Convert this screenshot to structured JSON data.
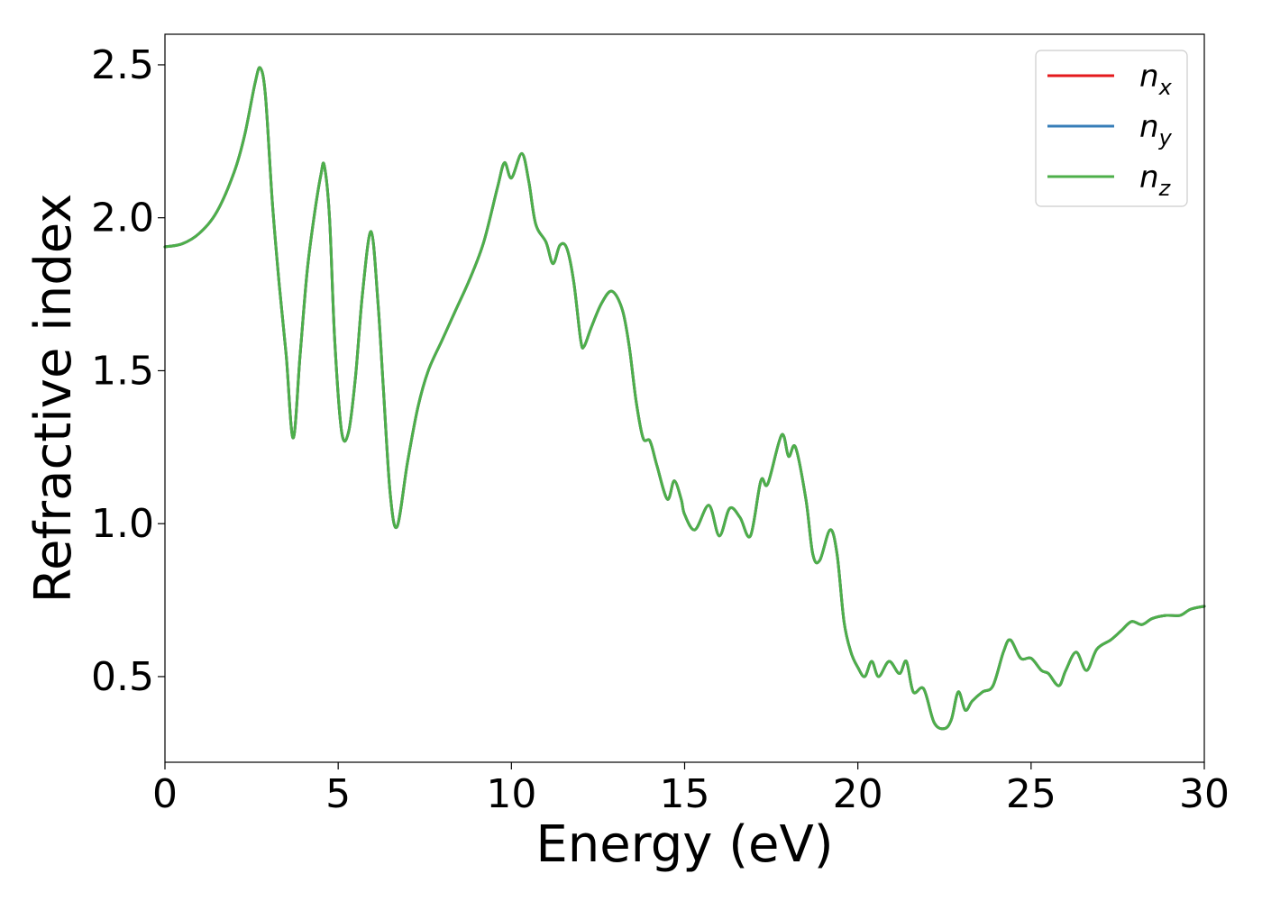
{
  "chart_data": {
    "type": "line",
    "title": "",
    "xlabel": "Energy (eV)",
    "ylabel": "Refractive index",
    "xlim": [
      0,
      30
    ],
    "ylim": [
      0.22,
      2.6
    ],
    "xticks": [
      0,
      5,
      10,
      15,
      20,
      25,
      30
    ],
    "xtick_labels": [
      "0",
      "5",
      "10",
      "15",
      "20",
      "25",
      "30"
    ],
    "yticks": [
      0.5,
      1.0,
      1.5,
      2.0,
      2.5
    ],
    "ytick_labels": [
      "0.5",
      "1.0",
      "1.5",
      "2.0",
      "2.5"
    ],
    "grid": false,
    "legend_position": "top-right",
    "legend": [
      {
        "symbol": "n",
        "sub": "x",
        "color": "#e41a1c"
      },
      {
        "symbol": "n",
        "sub": "y",
        "color": "#377eb8"
      },
      {
        "symbol": "n",
        "sub": "z",
        "color": "#4daf4a"
      }
    ],
    "x": [
      0,
      0.5,
      1.0,
      1.5,
      2.0,
      2.3,
      2.6,
      2.75,
      2.9,
      3.1,
      3.3,
      3.5,
      3.7,
      3.9,
      4.1,
      4.3,
      4.5,
      4.6,
      4.75,
      4.9,
      5.1,
      5.3,
      5.5,
      5.7,
      5.95,
      6.15,
      6.3,
      6.5,
      6.7,
      7.0,
      7.3,
      7.6,
      8.0,
      8.4,
      8.8,
      9.2,
      9.6,
      9.8,
      10.0,
      10.3,
      10.5,
      10.7,
      11.0,
      11.2,
      11.4,
      11.6,
      11.8,
      12.0,
      12.1,
      12.3,
      12.6,
      12.9,
      13.2,
      13.4,
      13.6,
      13.8,
      14.0,
      14.2,
      14.5,
      14.7,
      14.9,
      15.0,
      15.3,
      15.7,
      16.0,
      16.3,
      16.6,
      16.9,
      17.2,
      17.4,
      17.8,
      18.0,
      18.2,
      18.5,
      18.7,
      18.9,
      19.2,
      19.4,
      19.6,
      19.8,
      20.0,
      20.2,
      20.4,
      20.6,
      20.9,
      21.2,
      21.4,
      21.6,
      21.9,
      22.2,
      22.5,
      22.7,
      22.9,
      23.1,
      23.3,
      23.6,
      23.9,
      24.2,
      24.4,
      24.7,
      25.0,
      25.3,
      25.5,
      25.8,
      26.0,
      26.3,
      26.6,
      26.9,
      27.3,
      27.6,
      27.9,
      28.2,
      28.5,
      28.9,
      29.3,
      29.6,
      30.0
    ],
    "series": [
      {
        "name": "n_x",
        "color": "#e41a1c",
        "values": [
          1.905,
          1.915,
          1.95,
          2.02,
          2.15,
          2.27,
          2.44,
          2.49,
          2.4,
          2.05,
          1.78,
          1.55,
          1.28,
          1.55,
          1.82,
          2.0,
          2.14,
          2.17,
          2.0,
          1.6,
          1.3,
          1.3,
          1.48,
          1.75,
          1.955,
          1.72,
          1.45,
          1.1,
          0.99,
          1.2,
          1.38,
          1.5,
          1.6,
          1.7,
          1.8,
          1.92,
          2.1,
          2.18,
          2.13,
          2.21,
          2.12,
          1.98,
          1.92,
          1.85,
          1.91,
          1.9,
          1.79,
          1.6,
          1.58,
          1.64,
          1.72,
          1.76,
          1.7,
          1.58,
          1.4,
          1.28,
          1.27,
          1.19,
          1.08,
          1.14,
          1.08,
          1.03,
          0.98,
          1.06,
          0.96,
          1.05,
          1.02,
          0.96,
          1.14,
          1.13,
          1.29,
          1.22,
          1.25,
          1.08,
          0.9,
          0.88,
          0.98,
          0.9,
          0.68,
          0.58,
          0.53,
          0.5,
          0.55,
          0.5,
          0.55,
          0.51,
          0.55,
          0.45,
          0.46,
          0.35,
          0.33,
          0.36,
          0.45,
          0.39,
          0.42,
          0.45,
          0.47,
          0.58,
          0.62,
          0.56,
          0.56,
          0.52,
          0.51,
          0.47,
          0.52,
          0.58,
          0.52,
          0.59,
          0.62,
          0.65,
          0.68,
          0.67,
          0.69,
          0.7,
          0.7,
          0.72,
          0.73
        ]
      },
      {
        "name": "n_y",
        "color": "#377eb8",
        "values": [
          1.905,
          1.915,
          1.95,
          2.02,
          2.15,
          2.27,
          2.44,
          2.49,
          2.4,
          2.05,
          1.78,
          1.55,
          1.28,
          1.55,
          1.82,
          2.0,
          2.14,
          2.17,
          2.0,
          1.6,
          1.3,
          1.3,
          1.48,
          1.75,
          1.955,
          1.72,
          1.45,
          1.1,
          0.99,
          1.2,
          1.38,
          1.5,
          1.6,
          1.7,
          1.8,
          1.92,
          2.1,
          2.18,
          2.13,
          2.21,
          2.12,
          1.98,
          1.92,
          1.85,
          1.91,
          1.9,
          1.79,
          1.6,
          1.58,
          1.64,
          1.72,
          1.76,
          1.7,
          1.58,
          1.4,
          1.28,
          1.27,
          1.19,
          1.08,
          1.14,
          1.08,
          1.03,
          0.98,
          1.06,
          0.96,
          1.05,
          1.02,
          0.96,
          1.14,
          1.13,
          1.29,
          1.22,
          1.25,
          1.08,
          0.9,
          0.88,
          0.98,
          0.9,
          0.68,
          0.58,
          0.53,
          0.5,
          0.55,
          0.5,
          0.55,
          0.51,
          0.55,
          0.45,
          0.46,
          0.35,
          0.33,
          0.36,
          0.45,
          0.39,
          0.42,
          0.45,
          0.47,
          0.58,
          0.62,
          0.56,
          0.56,
          0.52,
          0.51,
          0.47,
          0.52,
          0.58,
          0.52,
          0.59,
          0.62,
          0.65,
          0.68,
          0.67,
          0.69,
          0.7,
          0.7,
          0.72,
          0.73
        ]
      },
      {
        "name": "n_z",
        "color": "#4daf4a",
        "values": [
          1.905,
          1.915,
          1.95,
          2.02,
          2.15,
          2.27,
          2.44,
          2.49,
          2.4,
          2.05,
          1.78,
          1.55,
          1.28,
          1.55,
          1.82,
          2.0,
          2.14,
          2.17,
          2.0,
          1.6,
          1.3,
          1.3,
          1.48,
          1.75,
          1.955,
          1.72,
          1.45,
          1.1,
          0.99,
          1.2,
          1.38,
          1.5,
          1.6,
          1.7,
          1.8,
          1.92,
          2.1,
          2.18,
          2.13,
          2.21,
          2.12,
          1.98,
          1.92,
          1.85,
          1.91,
          1.9,
          1.79,
          1.6,
          1.58,
          1.64,
          1.72,
          1.76,
          1.7,
          1.58,
          1.4,
          1.28,
          1.27,
          1.19,
          1.08,
          1.14,
          1.08,
          1.03,
          0.98,
          1.06,
          0.96,
          1.05,
          1.02,
          0.96,
          1.14,
          1.13,
          1.29,
          1.22,
          1.25,
          1.08,
          0.9,
          0.88,
          0.98,
          0.9,
          0.68,
          0.58,
          0.53,
          0.5,
          0.55,
          0.5,
          0.55,
          0.51,
          0.55,
          0.45,
          0.46,
          0.35,
          0.33,
          0.36,
          0.45,
          0.39,
          0.42,
          0.45,
          0.47,
          0.58,
          0.62,
          0.56,
          0.56,
          0.52,
          0.51,
          0.47,
          0.52,
          0.58,
          0.52,
          0.59,
          0.62,
          0.65,
          0.68,
          0.67,
          0.69,
          0.7,
          0.7,
          0.72,
          0.73
        ]
      }
    ]
  }
}
